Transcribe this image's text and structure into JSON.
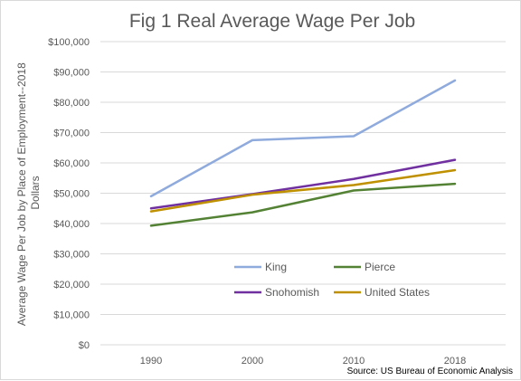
{
  "chart_data": {
    "type": "line",
    "title": "Fig 1 Real Average Wage Per Job",
    "ylabel_line1": "Average Wage Per Job by Place of Employment--2018",
    "ylabel_line2": "Dollars",
    "xlabel": "",
    "categories": [
      "1990",
      "2000",
      "2010",
      "2018"
    ],
    "ylim": [
      0,
      100000
    ],
    "yticks": [
      0,
      10000,
      20000,
      30000,
      40000,
      50000,
      60000,
      70000,
      80000,
      90000,
      100000
    ],
    "ytick_labels": [
      "$0",
      "$10,000",
      "$20,000",
      "$30,000",
      "$40,000",
      "$50,000",
      "$60,000",
      "$70,000",
      "$80,000",
      "$90,000",
      "$100,000"
    ],
    "grid": true,
    "legend_position": "inside-bottom",
    "series": [
      {
        "name": "King",
        "color": "#8faadc",
        "values": [
          49000,
          67500,
          68800,
          87200
        ]
      },
      {
        "name": "Pierce",
        "color": "#548235",
        "values": [
          39300,
          43700,
          50900,
          53100
        ]
      },
      {
        "name": "Snohomish",
        "color": "#7030a0",
        "values": [
          45000,
          49700,
          54700,
          61000
        ]
      },
      {
        "name": "United States",
        "color": "#bf9000",
        "values": [
          44000,
          49500,
          52700,
          57600
        ]
      }
    ],
    "source": "Source: US Bureau of Economic Analysis"
  }
}
